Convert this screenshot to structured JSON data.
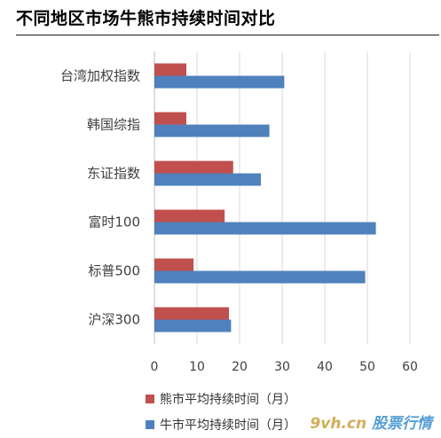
{
  "title": "不同地区市场牛熊市持续时间对比",
  "chart_data": {
    "type": "bar",
    "orientation": "horizontal",
    "categories": [
      "台湾加权指数",
      "韩国综指",
      "东证指数",
      "富时100",
      "标普500",
      "沪深300"
    ],
    "series": [
      {
        "name": "熊市平均持续时间（月）",
        "color": "#c0504d",
        "values": [
          7.5,
          7.5,
          18.5,
          16.5,
          9.2,
          17.5
        ]
      },
      {
        "name": "牛市平均持续时间（月）",
        "color": "#4f81bd",
        "values": [
          30.5,
          27,
          25,
          52,
          49.5,
          18
        ]
      }
    ],
    "xlim": [
      0,
      60
    ],
    "xticks": [
      0,
      10,
      20,
      30,
      40,
      50,
      60
    ],
    "grid": true,
    "legend_position": "bottom"
  },
  "watermark": {
    "prefix": "9vh",
    "suffix": ".cn",
    "brand": "股票行情"
  }
}
